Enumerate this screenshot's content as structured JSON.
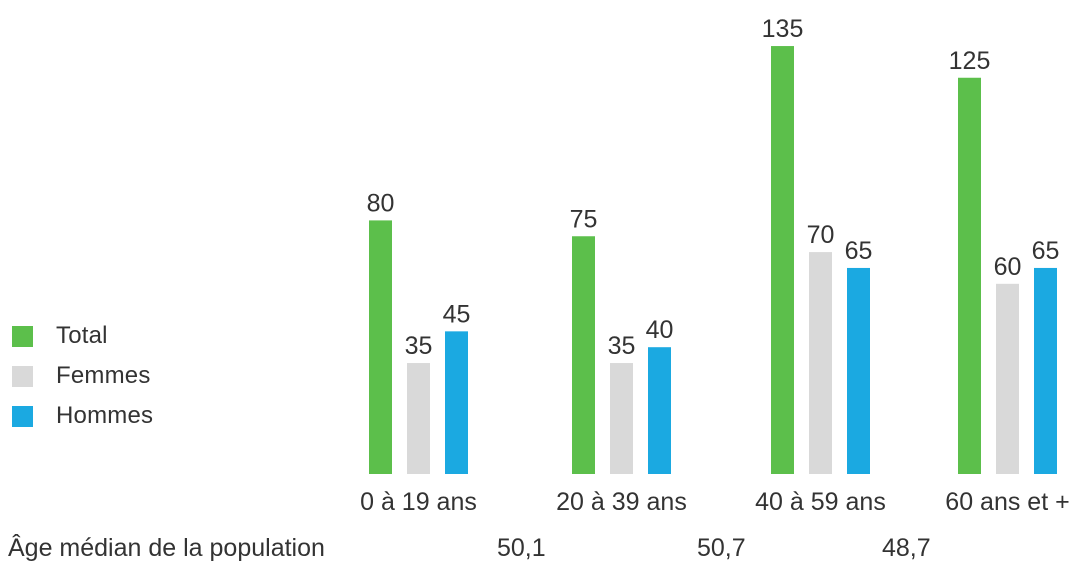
{
  "chart_data": {
    "type": "bar",
    "title": "",
    "xlabel": "",
    "ylabel": "",
    "ylim": [
      0,
      140
    ],
    "grid": false,
    "legend_placement": "left",
    "categories": [
      "0 à 19 ans",
      "20 à 39 ans",
      "40 à 59 ans",
      "60 ans et +"
    ],
    "series": [
      {
        "name": "Total",
        "color": "#5cbf4b",
        "values": [
          80,
          75,
          135,
          125
        ]
      },
      {
        "name": "Femmes",
        "color": "#d9d9d9",
        "values": [
          35,
          35,
          70,
          60
        ]
      },
      {
        "name": "Hommes",
        "color": "#1ba9e1",
        "values": [
          45,
          40,
          65,
          65
        ]
      }
    ]
  },
  "median": {
    "label": "Âge médian de la population",
    "values": [
      "50,1",
      "50,7",
      "48,7"
    ]
  }
}
